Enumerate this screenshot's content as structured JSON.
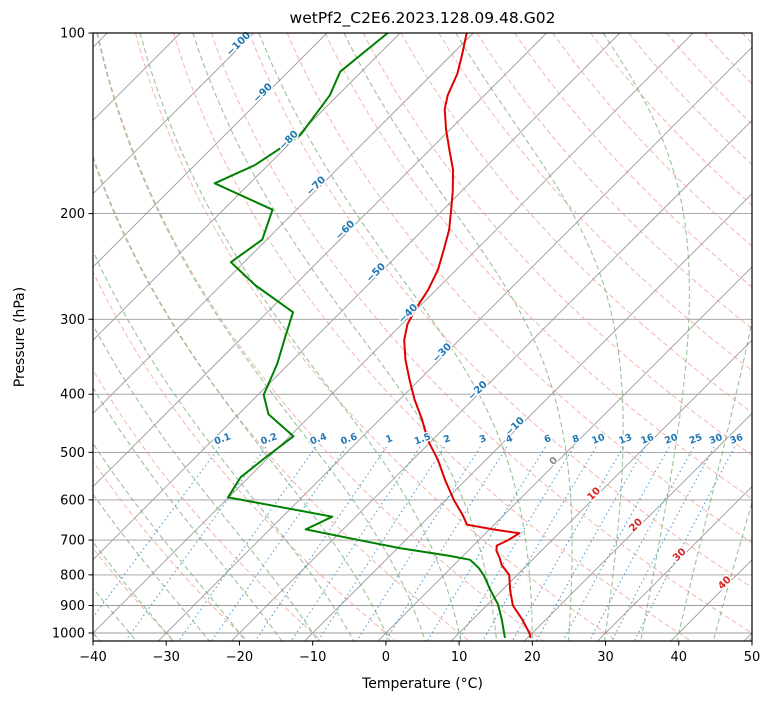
{
  "title": "wetPf2_C2E6.2023.128.09.48.G02",
  "axes": {
    "x_label": "Temperature (°C)",
    "y_label": "Pressure (hPa)",
    "x_ticks": [
      -40,
      -30,
      -20,
      -10,
      0,
      10,
      20,
      30,
      40,
      50
    ],
    "y_ticks": [
      100,
      200,
      300,
      400,
      500,
      600,
      700,
      800,
      900,
      1000
    ]
  },
  "chart_data": {
    "type": "line",
    "subtype": "skew-t-log-p",
    "skew_degrees": 45,
    "x_range_c": [
      -40,
      50
    ],
    "pressure_range_hpa": [
      100,
      1031
    ],
    "series": [
      {
        "name": "temperature",
        "color": "#e00000",
        "points_p_t": [
          [
            100,
            -70.9
          ],
          [
            109,
            -68.5
          ],
          [
            117,
            -66.6
          ],
          [
            127,
            -65.0
          ],
          [
            134,
            -63.5
          ],
          [
            145,
            -60.5
          ],
          [
            157,
            -57.2
          ],
          [
            169,
            -54.1
          ],
          [
            183,
            -51.3
          ],
          [
            197,
            -48.9
          ],
          [
            213,
            -46.4
          ],
          [
            230,
            -44.4
          ],
          [
            248,
            -42.5
          ],
          [
            268,
            -41.1
          ],
          [
            290,
            -40.1
          ],
          [
            306,
            -39.2
          ],
          [
            325,
            -37.5
          ],
          [
            350,
            -34.7
          ],
          [
            378,
            -31.4
          ],
          [
            408,
            -28.0
          ],
          [
            440,
            -24.3
          ],
          [
            478,
            -20.5
          ],
          [
            514,
            -16.6
          ],
          [
            556,
            -12.8
          ],
          [
            600,
            -8.9
          ],
          [
            635,
            -5.7
          ],
          [
            660,
            -3.7
          ],
          [
            672,
            0.5
          ],
          [
            682,
            4.6
          ],
          [
            700,
            4.0
          ],
          [
            715,
            3.2
          ],
          [
            730,
            3.9
          ],
          [
            750,
            5.3
          ],
          [
            770,
            6.5
          ],
          [
            800,
            8.9
          ],
          [
            850,
            11.2
          ],
          [
            900,
            13.6
          ],
          [
            950,
            16.8
          ],
          [
            1000,
            19.6
          ],
          [
            1016,
            20.3
          ]
        ]
      },
      {
        "name": "dewpoint",
        "color": "#008000",
        "points_p_t": [
          [
            100,
            -81.7
          ],
          [
            116,
            -82.9
          ],
          [
            127,
            -81.1
          ],
          [
            148,
            -79.7
          ],
          [
            166,
            -81.8
          ],
          [
            178,
            -84.8
          ],
          [
            197,
            -73.3
          ],
          [
            221,
            -70.6
          ],
          [
            241,
            -71.8
          ],
          [
            263,
            -65.4
          ],
          [
            292,
            -56.5
          ],
          [
            322,
            -54.1
          ],
          [
            356,
            -51.6
          ],
          [
            401,
            -49.2
          ],
          [
            432,
            -45.9
          ],
          [
            470,
            -39.5
          ],
          [
            510,
            -40.4
          ],
          [
            550,
            -41.1
          ],
          [
            594,
            -40.1
          ],
          [
            640,
            -23.2
          ],
          [
            672,
            -25.1
          ],
          [
            695,
            -17.9
          ],
          [
            722,
            -9.7
          ],
          [
            744,
            -1.8
          ],
          [
            755,
            1.5
          ],
          [
            778,
            3.7
          ],
          [
            800,
            5.4
          ],
          [
            848,
            8.4
          ],
          [
            896,
            11.4
          ],
          [
            950,
            14.0
          ],
          [
            1016,
            16.8
          ]
        ]
      }
    ],
    "isobars": {
      "values": [
        100,
        200,
        300,
        400,
        500,
        600,
        700,
        800,
        900,
        1000
      ],
      "color": "#9b9b9b"
    },
    "isotherms": {
      "min": -130,
      "max": 50,
      "step": 10,
      "color": "#9b9b9b",
      "label_values": [
        -100,
        -90,
        -80,
        -70,
        -60,
        -50,
        -40,
        -30,
        -20,
        -10,
        0,
        10,
        20,
        30,
        40
      ],
      "label_colors": {
        "negative": "#1f77b4",
        "zero": "#8a8a8a",
        "positive": "#d62728"
      }
    },
    "dry_adiabats": {
      "theta_min": -40,
      "theta_max": 190,
      "step": 10,
      "color": "#ef9c8f"
    },
    "moist_adiabats": {
      "thetaw_min": -40,
      "thetaw_max": 50,
      "step": 5,
      "color": "#6fa86f"
    },
    "mixing_ratio_lines": {
      "values_g_kg": [
        0.1,
        0.2,
        0.4,
        0.6,
        1,
        1.5,
        2,
        3,
        4,
        6,
        8,
        10,
        13,
        16,
        20,
        25,
        30,
        36
      ],
      "color": "#3d8ec9",
      "label_color": "#1f77b4",
      "top_pressure": 490,
      "label_pressure": 480
    }
  }
}
